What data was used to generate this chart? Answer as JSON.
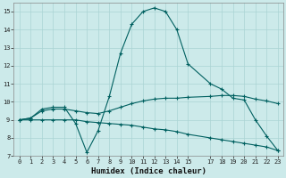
{
  "xlabel": "Humidex (Indice chaleur)",
  "ylabel": "",
  "bg_color": "#cceaea",
  "grid_color": "#aad4d4",
  "line_color": "#006060",
  "xlim": [
    -0.5,
    23.5
  ],
  "ylim": [
    7,
    15.5
  ],
  "yticks": [
    7,
    8,
    9,
    10,
    11,
    12,
    13,
    14,
    15
  ],
  "xticks": [
    0,
    1,
    2,
    3,
    4,
    5,
    6,
    7,
    8,
    9,
    10,
    11,
    12,
    13,
    14,
    15,
    17,
    18,
    19,
    20,
    21,
    22,
    23
  ],
  "line1_x": [
    0,
    1,
    2,
    3,
    4,
    5,
    6,
    7,
    8,
    9,
    10,
    11,
    12,
    13,
    14,
    15,
    17,
    18,
    19,
    20,
    21,
    22,
    23
  ],
  "line1_y": [
    9.0,
    9.1,
    9.6,
    9.7,
    9.7,
    8.8,
    7.2,
    8.4,
    10.3,
    12.7,
    14.3,
    15.0,
    15.2,
    15.0,
    14.0,
    12.1,
    11.0,
    10.7,
    10.2,
    10.1,
    9.0,
    8.1,
    7.3
  ],
  "line2_x": [
    0,
    1,
    2,
    3,
    4,
    5,
    6,
    7,
    8,
    9,
    10,
    11,
    12,
    13,
    14,
    15,
    17,
    18,
    19,
    20,
    21,
    22,
    23
  ],
  "line2_y": [
    9.0,
    9.1,
    9.5,
    9.6,
    9.6,
    9.5,
    9.4,
    9.35,
    9.5,
    9.7,
    9.9,
    10.05,
    10.15,
    10.2,
    10.2,
    10.25,
    10.3,
    10.35,
    10.35,
    10.3,
    10.15,
    10.05,
    9.9
  ],
  "line3_x": [
    0,
    1,
    2,
    3,
    4,
    5,
    6,
    7,
    8,
    9,
    10,
    11,
    12,
    13,
    14,
    15,
    17,
    18,
    19,
    20,
    21,
    22,
    23
  ],
  "line3_y": [
    9.0,
    9.0,
    9.0,
    9.0,
    9.0,
    9.0,
    8.9,
    8.85,
    8.8,
    8.75,
    8.7,
    8.6,
    8.5,
    8.45,
    8.35,
    8.2,
    8.0,
    7.9,
    7.8,
    7.7,
    7.6,
    7.5,
    7.3
  ],
  "tick_fontsize": 5.0,
  "xlabel_fontsize": 6.5,
  "marker_size": 3.5,
  "line_width": 0.8
}
